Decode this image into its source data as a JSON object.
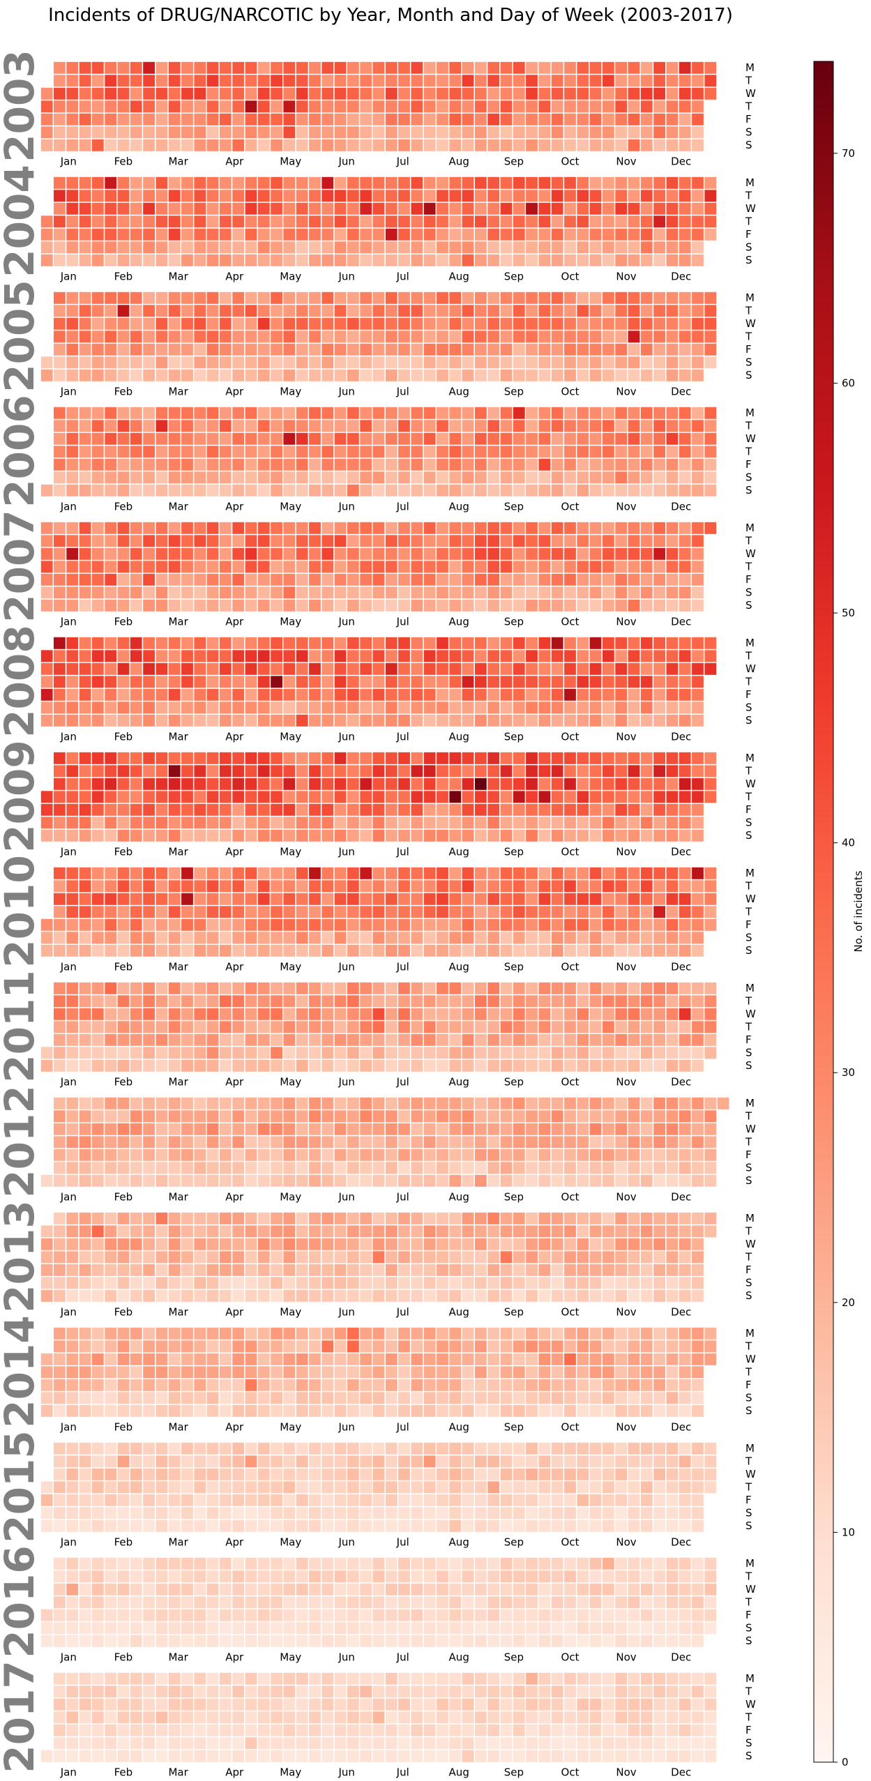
{
  "chart_data": {
    "type": "heatmap",
    "title": "Incidents of DRUG/NARCOTIC by Year, Month and Day of Week (2003-2017)",
    "colorbar": {
      "label": "No. of incidents",
      "range": [
        0,
        74
      ],
      "ticks": [
        "0",
        "10",
        "20",
        "30",
        "40",
        "50",
        "60",
        "70"
      ],
      "colors": [
        "#fff5f0",
        "#fee0d2",
        "#fcbba1",
        "#fc9272",
        "#fb6a4a",
        "#ef3b2c",
        "#cb181d",
        "#a50f15",
        "#67000d"
      ]
    },
    "day_labels": [
      "M",
      "T",
      "W",
      "T",
      "F",
      "S",
      "S"
    ],
    "month_labels": [
      "Jan",
      "Feb",
      "Mar",
      "Apr",
      "May",
      "Jun",
      "Jul",
      "Aug",
      "Sep",
      "Oct",
      "Nov",
      "Dec"
    ],
    "years": [
      {
        "year": "2003",
        "months": [
          "Jan",
          "Feb",
          "Mar",
          "Apr",
          "May",
          "Jun",
          "Jul",
          "Aug",
          "Sep",
          "Oct",
          "Nov",
          "Dec"
        ],
        "level": 32
      },
      {
        "year": "2004",
        "months": [
          "Jan",
          "Feb",
          "Mar",
          "Apr",
          "May",
          "Jun",
          "Jul",
          "Aug",
          "Sep",
          "Oct",
          "Nov",
          "Dec"
        ],
        "level": 32
      },
      {
        "year": "2005",
        "months": [
          "Jan",
          "Feb",
          "Mar",
          "Apr",
          "May",
          "Jun",
          "Jul",
          "Aug",
          "Sep",
          "Oct",
          "Nov",
          "Dec"
        ],
        "level": 28
      },
      {
        "year": "2006",
        "months": [
          "Jan",
          "Feb",
          "Mar",
          "Apr",
          "May",
          "Jun",
          "Jul",
          "Aug",
          "Sep",
          "Oct",
          "Nov",
          "Dec"
        ],
        "level": 28
      },
      {
        "year": "2007",
        "months": [
          "Jan",
          "Feb",
          "Mar",
          "Apr",
          "May",
          "Jun",
          "Jul",
          "Aug",
          "Sep",
          "Oct",
          "Nov",
          "Dec"
        ],
        "level": 31
      },
      {
        "year": "2008",
        "months": [
          "Jan",
          "Feb",
          "Mar",
          "Apr",
          "May",
          "Jun",
          "Jul",
          "Aug",
          "Sep",
          "Oct",
          "Nov",
          "Dec"
        ],
        "level": 35
      },
      {
        "year": "2009",
        "months": [
          "Jan",
          "Feb",
          "Mar",
          "Apr",
          "May",
          "Jun",
          "Jul",
          "Aug",
          "Sep",
          "Oct",
          "Nov",
          "Dec"
        ],
        "level": 37
      },
      {
        "year": "2010",
        "months": [
          "Jan",
          "Feb",
          "Mar",
          "Apr",
          "May",
          "Jun",
          "Jul",
          "Aug",
          "Sep",
          "Oct",
          "Nov",
          "Dec"
        ],
        "level": 31
      },
      {
        "year": "2011",
        "months": [
          "Jan",
          "Feb",
          "Mar",
          "Apr",
          "May",
          "Jun",
          "Jul",
          "Aug",
          "Sep",
          "Oct",
          "Nov",
          "Dec"
        ],
        "level": 24
      },
      {
        "year": "2012",
        "months": [
          "Jan",
          "Feb",
          "Mar",
          "Apr",
          "May",
          "Jun",
          "Jul",
          "Aug",
          "Sep",
          "Oct",
          "Nov",
          "Dec"
        ],
        "level": 21
      },
      {
        "year": "2013",
        "months": [
          "Jan",
          "Feb",
          "Mar",
          "Apr",
          "May",
          "Jun",
          "Jul",
          "Aug",
          "Sep",
          "Oct",
          "Nov",
          "Dec"
        ],
        "level": 19
      },
      {
        "year": "2014",
        "months": [
          "Jan",
          "Feb",
          "Mar",
          "Apr",
          "May",
          "Jun",
          "Jul",
          "Aug",
          "Sep",
          "Oct",
          "Nov",
          "Dec"
        ],
        "level": 19
      },
      {
        "year": "2015",
        "months": [
          "Jan",
          "Feb",
          "Mar",
          "Apr",
          "May",
          "Jun",
          "Jul",
          "Aug",
          "Sep",
          "Oct",
          "Nov",
          "Dec"
        ],
        "level": 13
      },
      {
        "year": "2016",
        "months": [
          "Jan",
          "Feb",
          "Mar",
          "Apr",
          "May",
          "Jun",
          "Jul",
          "Aug",
          "Sep",
          "Oct",
          "Nov",
          "Dec"
        ],
        "level": 11
      },
      {
        "year": "2017",
        "months": [
          "Jan",
          "Feb",
          "Mar",
          "Apr",
          "May",
          "Jun",
          "Jul",
          "Aug",
          "Sep",
          "Oct",
          "Nov",
          "Dec"
        ],
        "level": 11
      }
    ]
  }
}
